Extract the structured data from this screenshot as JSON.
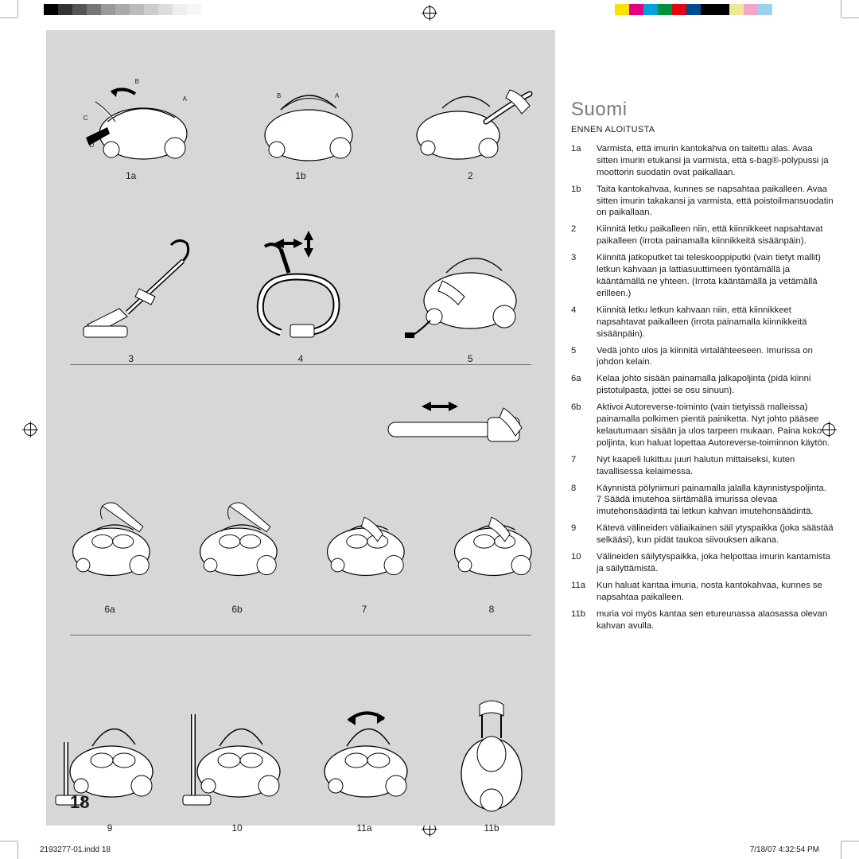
{
  "colorbar_left": [
    "#000000",
    "#333333",
    "#555555",
    "#777777",
    "#999999",
    "#aaaaaa",
    "#bbbbbb",
    "#cccccc",
    "#dddddd",
    "#eeeeee",
    "#f6f6f6",
    "#ffffff",
    "#ffffff",
    "#ffffff"
  ],
  "colorbar_right": [
    "#f9e200",
    "#e30082",
    "#00a0dc",
    "#00923f",
    "#e30613",
    "#004a8f",
    "#000000",
    "#000000",
    "#f1e59a",
    "#f2a6c8",
    "#9cd2f0",
    "#ffffff",
    "#ffffff",
    "#ffffff"
  ],
  "panel_bg": "#d6d7d8",
  "lang_title": "Suomi",
  "subhead": "ENNEN ALOITUSTA",
  "figures_row1": [
    {
      "label": "1a",
      "letters": [
        "A",
        "B",
        "C",
        "D"
      ]
    },
    {
      "label": "1b",
      "letters": [
        "A",
        "B"
      ]
    },
    {
      "label": "2"
    }
  ],
  "figures_row2": [
    {
      "label": "3"
    },
    {
      "label": "4"
    },
    {
      "label": "5"
    }
  ],
  "figures_row3": [
    {
      "label": "6a"
    },
    {
      "label": "6b"
    },
    {
      "label": "7"
    },
    {
      "label": "8"
    }
  ],
  "figures_row4": [
    {
      "label": "9"
    },
    {
      "label": "10"
    },
    {
      "label": "11a"
    },
    {
      "label": "11b"
    }
  ],
  "instructions": [
    {
      "n": "1a",
      "t": "Varmista, että imurin kantokahva on taitettu alas. Avaa sitten imurin etukansi ja varmista, että s-bag®-pölypussi ja moottorin suodatin ovat paikallaan."
    },
    {
      "n": "1b",
      "t": "Taita kantokahvaa, kunnes se napsahtaa paikalleen. Avaa sitten imurin takakansi ja varmista, että poistoilmansuodatin on paikallaan."
    },
    {
      "n": "2",
      "t": "Kiinnitä letku paikalleen niin, että kiinnikkeet napsahtavat paikalleen (irrota painamalla kiinnikkeitä sisäänpäin)."
    },
    {
      "n": "3",
      "t": "Kiinnitä jatkoputket tai teleskooppiputki (vain tietyt mallit) letkun kahvaan ja lattiasuuttimeen työntämällä ja kääntämällä ne yhteen. (Irrota kääntämällä ja vetämällä erilleen.)"
    },
    {
      "n": "4",
      "t": "Kiinnitä letku letkun kahvaan niin, että kiinnikkeet napsahtavat paikalleen (irrota painamalla kiinnikkeitä sisäänpäin)."
    },
    {
      "n": "5",
      "t": "Vedä johto ulos ja kiinnitä virtalähteeseen. Imurissa on johdon kelain."
    },
    {
      "n": "6a",
      "t": "Kelaa johto sisään painamalla jalkapoljinta (pidä kiinni pistotulpasta, jottei se osu sinuun)."
    },
    {
      "n": "6b",
      "t": "Aktivoi Autoreverse-toiminto (vain tietyissä malleissa) painamalla polkimen pientä painiketta. Nyt johto pääsee kelautumaan sisään ja ulos tarpeen mukaan. Paina koko poljinta, kun haluat lopettaa Autoreverse-toiminnon käytön."
    },
    {
      "n": "7",
      "t": "Nyt kaapeli lukittuu juuri halutun mittaiseksi, kuten tavallisessa kelaimessa."
    },
    {
      "n": "8",
      "t": "Käynnistä pölynimuri painamalla jalalla käynnistyspoljinta. 7 Säädä imutehoa siirtämällä imurissa olevaa imutehonsäädintä tai letkun kahvan imutehonsäädintä."
    },
    {
      "n": "9",
      "t": "Kätevä välineiden väliaikainen säil ytyspaikka (joka säästää selkääsi), kun pidät taukoa siivouksen aikana."
    },
    {
      "n": "10",
      "t": "Välineiden säilytyspaikka, joka helpottaa imurin kantamista ja säilyttämistä."
    },
    {
      "n": "11a",
      "t": "Kun haluat kantaa imuria, nosta kantokahvaa, kunnes se napsahtaa paikalleen."
    },
    {
      "n": "11b",
      "t": "muria voi myös kantaa sen etureunassa alaosassa olevan kahvan avulla."
    }
  ],
  "page_number": "18",
  "footer_left": "2193277-01.indd   18",
  "footer_right": "7/18/07   4:32:54 PM",
  "divider_color": "#6f6f6f",
  "fig_label_fontsize": 12,
  "text_fontsize": 11.3,
  "title_fontsize": 24,
  "title_color": "#7a7a7a"
}
